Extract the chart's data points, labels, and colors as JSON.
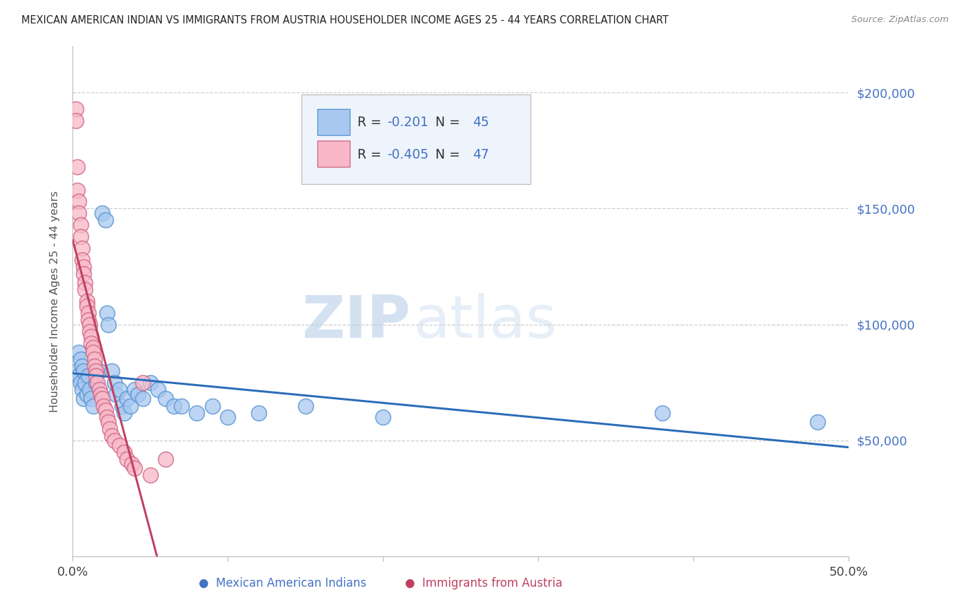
{
  "title": "MEXICAN AMERICAN INDIAN VS IMMIGRANTS FROM AUSTRIA HOUSEHOLDER INCOME AGES 25 - 44 YEARS CORRELATION CHART",
  "source": "Source: ZipAtlas.com",
  "ylabel": "Householder Income Ages 25 - 44 years",
  "watermark_zip": "ZIP",
  "watermark_atlas": "atlas",
  "blue_R": -0.201,
  "blue_N": 45,
  "pink_R": -0.405,
  "pink_N": 47,
  "xlim": [
    0.0,
    0.5
  ],
  "ylim": [
    0,
    220000
  ],
  "blue_scatter_x": [
    0.003,
    0.004,
    0.004,
    0.005,
    0.005,
    0.006,
    0.006,
    0.007,
    0.007,
    0.008,
    0.009,
    0.01,
    0.011,
    0.012,
    0.013,
    0.015,
    0.017,
    0.019,
    0.021,
    0.022,
    0.023,
    0.025,
    0.027,
    0.028,
    0.03,
    0.032,
    0.033,
    0.035,
    0.037,
    0.04,
    0.042,
    0.045,
    0.05,
    0.055,
    0.06,
    0.065,
    0.07,
    0.08,
    0.09,
    0.1,
    0.12,
    0.15,
    0.2,
    0.38,
    0.48
  ],
  "blue_scatter_y": [
    80000,
    88000,
    78000,
    85000,
    75000,
    82000,
    72000,
    80000,
    68000,
    75000,
    70000,
    78000,
    72000,
    68000,
    65000,
    75000,
    80000,
    148000,
    145000,
    105000,
    100000,
    80000,
    75000,
    70000,
    72000,
    65000,
    62000,
    68000,
    65000,
    72000,
    70000,
    68000,
    75000,
    72000,
    68000,
    65000,
    65000,
    62000,
    65000,
    60000,
    62000,
    65000,
    60000,
    62000,
    58000
  ],
  "pink_scatter_x": [
    0.002,
    0.002,
    0.003,
    0.003,
    0.004,
    0.004,
    0.005,
    0.005,
    0.006,
    0.006,
    0.007,
    0.007,
    0.008,
    0.008,
    0.009,
    0.009,
    0.01,
    0.01,
    0.011,
    0.011,
    0.012,
    0.012,
    0.013,
    0.013,
    0.014,
    0.014,
    0.015,
    0.015,
    0.016,
    0.017,
    0.018,
    0.019,
    0.02,
    0.021,
    0.022,
    0.023,
    0.024,
    0.025,
    0.027,
    0.03,
    0.033,
    0.035,
    0.038,
    0.04,
    0.045,
    0.05,
    0.06
  ],
  "pink_scatter_y": [
    193000,
    188000,
    168000,
    158000,
    153000,
    148000,
    143000,
    138000,
    133000,
    128000,
    125000,
    122000,
    118000,
    115000,
    110000,
    108000,
    105000,
    102000,
    100000,
    97000,
    95000,
    92000,
    90000,
    88000,
    85000,
    82000,
    80000,
    78000,
    75000,
    72000,
    70000,
    68000,
    65000,
    63000,
    60000,
    58000,
    55000,
    52000,
    50000,
    48000,
    45000,
    42000,
    40000,
    38000,
    75000,
    35000,
    42000
  ],
  "blue_dot_color": "#A8C8F0",
  "blue_dot_edge": "#5090D0",
  "pink_dot_color": "#F8B8C8",
  "pink_dot_edge": "#D06080",
  "blue_line_color": "#2B6CB8",
  "pink_line_color": "#C04060",
  "background_color": "#FFFFFF",
  "grid_color": "#C8C8C8",
  "title_color": "#222222",
  "ylabel_color": "#555555",
  "right_label_color": "#4472C4",
  "bottom_label_blue": "#4472C4",
  "bottom_label_pink": "#C04060",
  "legend_bg": "#EEF4FB",
  "legend_border": "#BBBBBB",
  "legend_text_color": "#333333",
  "legend_r_color": "#4472C4",
  "legend_n_color": "#4472C4"
}
